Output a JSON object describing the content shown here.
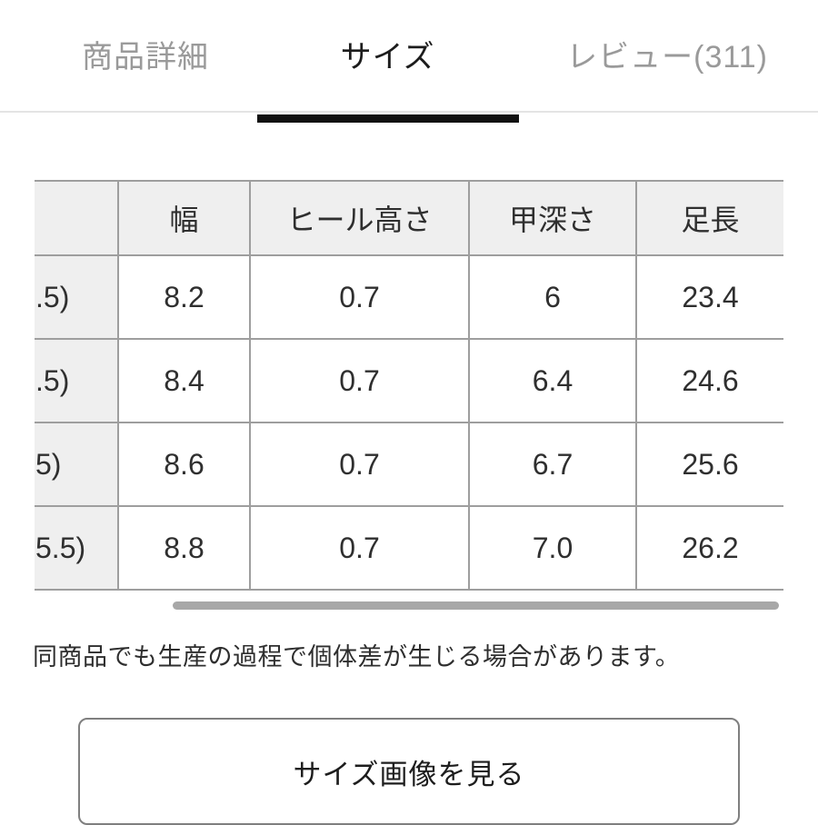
{
  "tabs": [
    {
      "label": "商品詳細",
      "active": false
    },
    {
      "label": "サイズ",
      "active": true
    },
    {
      "label": "レビュー(311)",
      "active": false
    }
  ],
  "size_table": {
    "columns": [
      "",
      "幅",
      "ヒール高さ",
      "甲深さ",
      "足長"
    ],
    "rows": [
      {
        "label": ".5)",
        "values": [
          "8.2",
          "0.7",
          "6",
          "23.4"
        ]
      },
      {
        "label": ".5)",
        "values": [
          "8.4",
          "0.7",
          "6.4",
          "24.6"
        ]
      },
      {
        "label": "5)",
        "values": [
          "8.6",
          "0.7",
          "6.7",
          "25.6"
        ]
      },
      {
        "label": "5.5)",
        "values": [
          "8.8",
          "0.7",
          "7.0",
          "26.2"
        ]
      }
    ]
  },
  "note": "同商品でも生産の過程で個体差が生じる場合があります。",
  "button": {
    "label": "サイズ画像を見る"
  },
  "colors": {
    "active_tab": "#1c1c1c",
    "inactive_tab": "#9a9a9a",
    "tab_underline": "#111111",
    "table_border": "#9e9e9e",
    "header_bg": "#efefef",
    "scrollbar": "#a8a8a8",
    "button_border": "#7f7f7f"
  }
}
